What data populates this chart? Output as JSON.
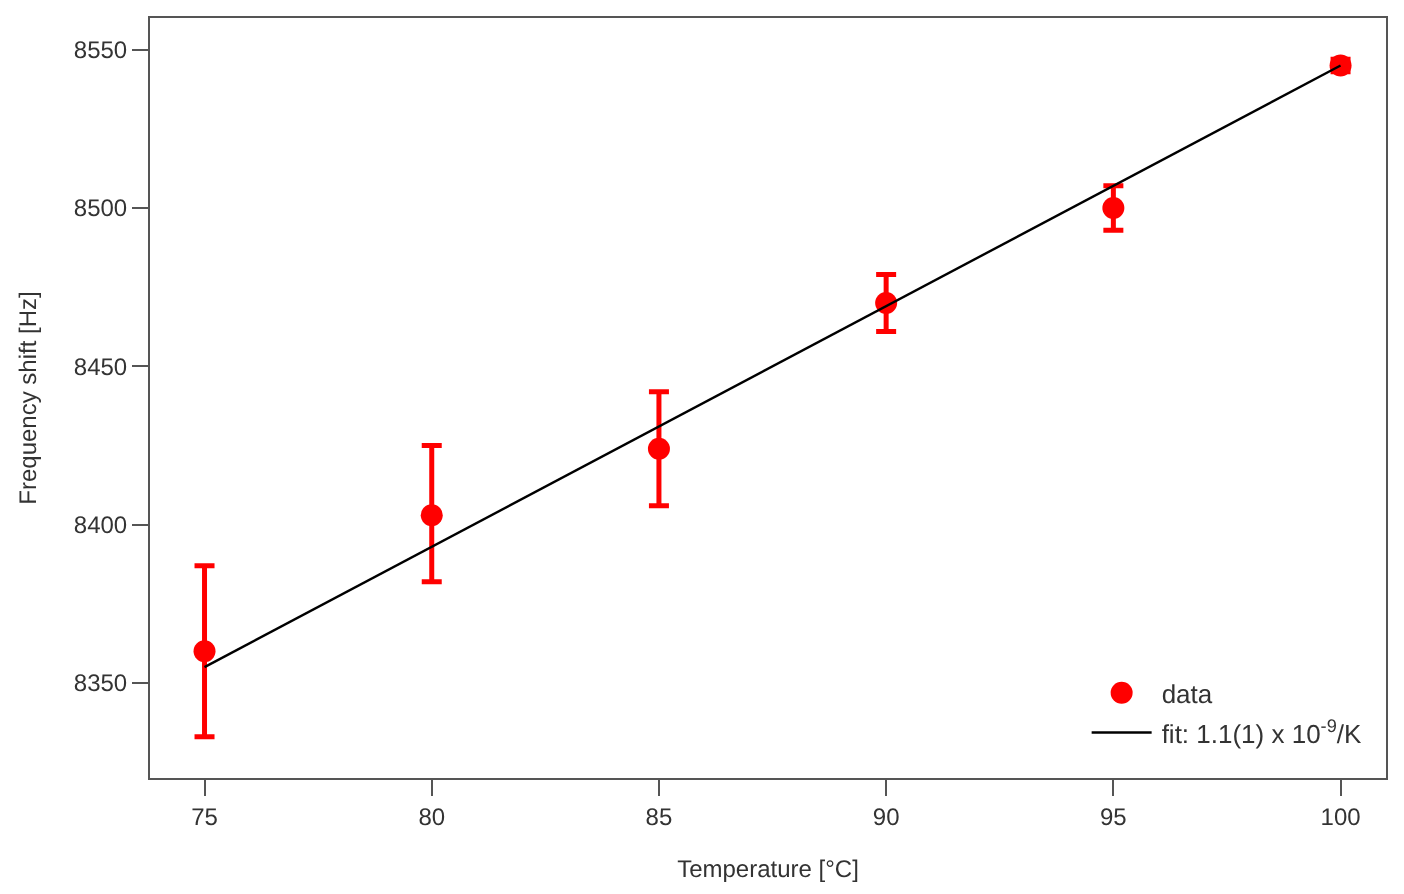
{
  "chart_data": {
    "type": "scatter",
    "xlabel": "Temperature [°C]",
    "ylabel": "Frequency shift [Hz]",
    "xlim": [
      73.8,
      101
    ],
    "ylim": [
      8320,
      8560
    ],
    "xticks": [
      75,
      80,
      85,
      90,
      95,
      100
    ],
    "yticks": [
      8350,
      8400,
      8450,
      8500,
      8550
    ],
    "legend": "bottom right",
    "series": [
      {
        "name": "data",
        "color": "#ff0000",
        "marker": "circle",
        "x": [
          75,
          80,
          85,
          90,
          95,
          100
        ],
        "values": [
          8360,
          8403,
          8424,
          8470,
          8500,
          8545
        ],
        "errors": [
          [
            8333,
            8387
          ],
          [
            8382,
            8425
          ],
          [
            8406,
            8442
          ],
          [
            8461,
            8479
          ],
          [
            8493,
            8507
          ],
          [
            8543,
            8547
          ]
        ]
      },
      {
        "name": "fit: 1.1(1) x 10$^{-9}$/K",
        "type": "line",
        "color": "#000000",
        "line_style": "solid",
        "x": [
          75,
          100
        ],
        "values": [
          8355,
          8545
        ]
      }
    ]
  }
}
